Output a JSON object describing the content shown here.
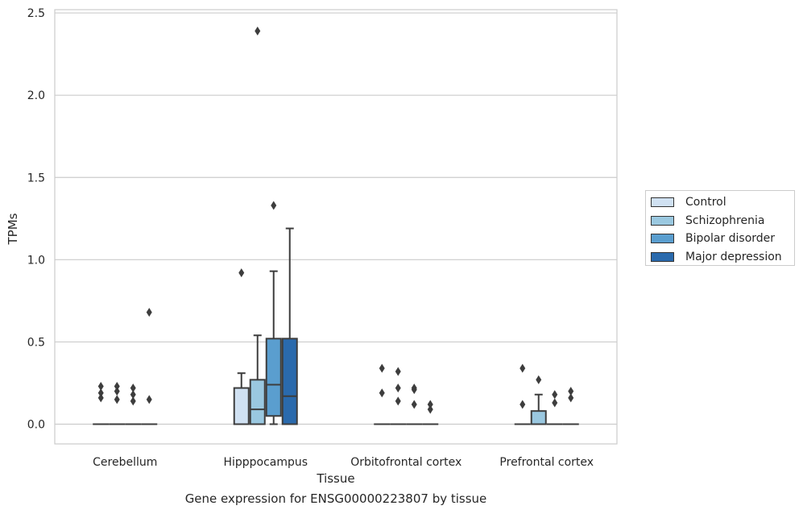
{
  "chart_data": {
    "type": "box",
    "xlabel": "Tissue",
    "ylabel": "TPMs",
    "ylim": [
      -0.12,
      2.52
    ],
    "yticks": [
      0.0,
      0.5,
      1.0,
      1.5,
      2.0,
      2.5
    ],
    "ytick_labels": [
      "0.0",
      "0.5",
      "1.0",
      "1.5",
      "2.0",
      "2.5"
    ],
    "grid": "horizontal",
    "legend_position": "right",
    "categories": [
      "Cerebellum",
      "Hipppocampus",
      "Orbitofrontal cortex",
      "Prefrontal cortex"
    ],
    "series": [
      {
        "name": "Control",
        "color": "#d0e1f2",
        "boxes": [
          {
            "q1": 0,
            "median": 0,
            "q3": 0,
            "whisker_low": 0,
            "whisker_high": 0,
            "outliers": [
              0.16,
              0.19,
              0.23
            ]
          },
          {
            "q1": 0,
            "median": 0,
            "q3": 0.22,
            "whisker_low": 0,
            "whisker_high": 0.31,
            "outliers": [
              0.92
            ]
          },
          {
            "q1": 0,
            "median": 0,
            "q3": 0,
            "whisker_low": 0,
            "whisker_high": 0,
            "outliers": [
              0.19,
              0.34
            ]
          },
          {
            "q1": 0,
            "median": 0,
            "q3": 0,
            "whisker_low": 0,
            "whisker_high": 0,
            "outliers": [
              0.12,
              0.34
            ]
          }
        ]
      },
      {
        "name": "Schizophrenia",
        "color": "#9ac8e0",
        "boxes": [
          {
            "q1": 0,
            "median": 0,
            "q3": 0,
            "whisker_low": 0,
            "whisker_high": 0,
            "outliers": [
              0.15,
              0.2,
              0.23
            ]
          },
          {
            "q1": 0,
            "median": 0.09,
            "q3": 0.27,
            "whisker_low": 0,
            "whisker_high": 0.54,
            "outliers": [
              2.39
            ]
          },
          {
            "q1": 0,
            "median": 0,
            "q3": 0,
            "whisker_low": 0,
            "whisker_high": 0,
            "outliers": [
              0.14,
              0.22,
              0.32
            ]
          },
          {
            "q1": 0,
            "median": 0,
            "q3": 0.08,
            "whisker_low": 0,
            "whisker_high": 0.18,
            "outliers": [
              0.27
            ]
          }
        ]
      },
      {
        "name": "Bipolar disorder",
        "color": "#5a9ecf",
        "boxes": [
          {
            "q1": 0,
            "median": 0,
            "q3": 0,
            "whisker_low": 0,
            "whisker_high": 0,
            "outliers": [
              0.14,
              0.18,
              0.22
            ]
          },
          {
            "q1": 0.05,
            "median": 0.24,
            "q3": 0.52,
            "whisker_low": 0,
            "whisker_high": 0.93,
            "outliers": [
              1.33
            ]
          },
          {
            "q1": 0,
            "median": 0,
            "q3": 0,
            "whisker_low": 0,
            "whisker_high": 0,
            "outliers": [
              0.12,
              0.21,
              0.22
            ]
          },
          {
            "q1": 0,
            "median": 0,
            "q3": 0,
            "whisker_low": 0,
            "whisker_high": 0,
            "outliers": [
              0.13,
              0.18
            ]
          }
        ]
      },
      {
        "name": "Major depression",
        "color": "#2a6aad",
        "boxes": [
          {
            "q1": 0,
            "median": 0,
            "q3": 0,
            "whisker_low": 0,
            "whisker_high": 0,
            "outliers": [
              0.15,
              0.68
            ]
          },
          {
            "q1": 0,
            "median": 0.17,
            "q3": 0.52,
            "whisker_low": 0,
            "whisker_high": 1.19,
            "outliers": []
          },
          {
            "q1": 0,
            "median": 0,
            "q3": 0,
            "whisker_low": 0,
            "whisker_high": 0,
            "outliers": [
              0.09,
              0.12
            ]
          },
          {
            "q1": 0,
            "median": 0,
            "q3": 0,
            "whisker_low": 0,
            "whisker_high": 0,
            "outliers": [
              0.16,
              0.2
            ]
          }
        ]
      }
    ],
    "caption": "Gene expression for ENSG00000223807 by tissue"
  }
}
